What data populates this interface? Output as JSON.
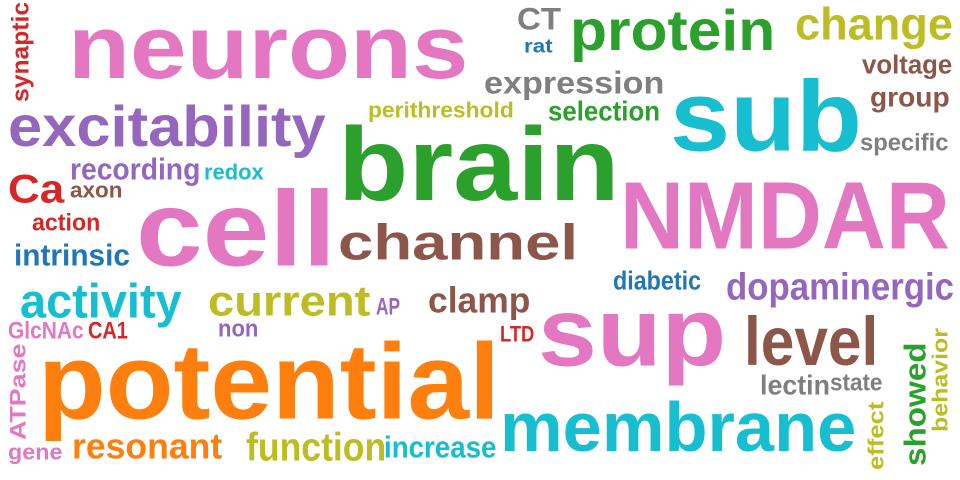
{
  "words": [
    {
      "text": "neurons",
      "color": "#e377c2"
    },
    {
      "text": "protein",
      "color": "#2ca02c"
    },
    {
      "text": "change",
      "color": "#bcbd22"
    },
    {
      "text": "CT",
      "color": "#7f7f7f"
    },
    {
      "text": "rat",
      "color": "#1f77b4"
    },
    {
      "text": "synaptic",
      "color": "#d62728"
    },
    {
      "text": "expression",
      "color": "#7f7f7f"
    },
    {
      "text": "voltage",
      "color": "#8c564b"
    },
    {
      "text": "group",
      "color": "#8c564b"
    },
    {
      "text": "sub",
      "color": "#17becf"
    },
    {
      "text": "excitability",
      "color": "#9467bd"
    },
    {
      "text": "perithreshold",
      "color": "#bcbd22"
    },
    {
      "text": "selection",
      "color": "#2ca02c"
    },
    {
      "text": "specific",
      "color": "#7f7f7f"
    },
    {
      "text": "brain",
      "color": "#2ca02c"
    },
    {
      "text": "recording",
      "color": "#9467bd"
    },
    {
      "text": "redox",
      "color": "#17becf"
    },
    {
      "text": "Ca",
      "color": "#d62728"
    },
    {
      "text": "axon",
      "color": "#8c564b"
    },
    {
      "text": "cell",
      "color": "#e377c2"
    },
    {
      "text": "NMDAR",
      "color": "#e377c2"
    },
    {
      "text": "action",
      "color": "#d62728"
    },
    {
      "text": "channel",
      "color": "#8c564b"
    },
    {
      "text": "intrinsic",
      "color": "#1f77b4"
    },
    {
      "text": "diabetic",
      "color": "#1f77b4"
    },
    {
      "text": "dopaminergic",
      "color": "#9467bd"
    },
    {
      "text": "activity",
      "color": "#17becf"
    },
    {
      "text": "current",
      "color": "#bcbd22"
    },
    {
      "text": "AP",
      "color": "#9467bd"
    },
    {
      "text": "clamp",
      "color": "#8c564b"
    },
    {
      "text": "sup",
      "color": "#e377c2"
    },
    {
      "text": "GlcNAc",
      "color": "#e377c2"
    },
    {
      "text": "CA1",
      "color": "#d62728"
    },
    {
      "text": "non",
      "color": "#9467bd"
    },
    {
      "text": "LTD",
      "color": "#d62728"
    },
    {
      "text": "level",
      "color": "#8c564b"
    },
    {
      "text": "potential",
      "color": "#ff7f0e"
    },
    {
      "text": "lectin",
      "color": "#7f7f7f"
    },
    {
      "text": "state",
      "color": "#7f7f7f"
    },
    {
      "text": "ATPase",
      "color": "#e377c2"
    },
    {
      "text": "showed",
      "color": "#2ca02c"
    },
    {
      "text": "behavior",
      "color": "#bcbd22"
    },
    {
      "text": "effect",
      "color": "#bcbd22"
    },
    {
      "text": "membrane",
      "color": "#17becf"
    },
    {
      "text": "gene",
      "color": "#e377c2"
    },
    {
      "text": "resonant",
      "color": "#ff7f0e"
    },
    {
      "text": "function",
      "color": "#bcbd22"
    },
    {
      "text": "increase",
      "color": "#17becf"
    }
  ]
}
